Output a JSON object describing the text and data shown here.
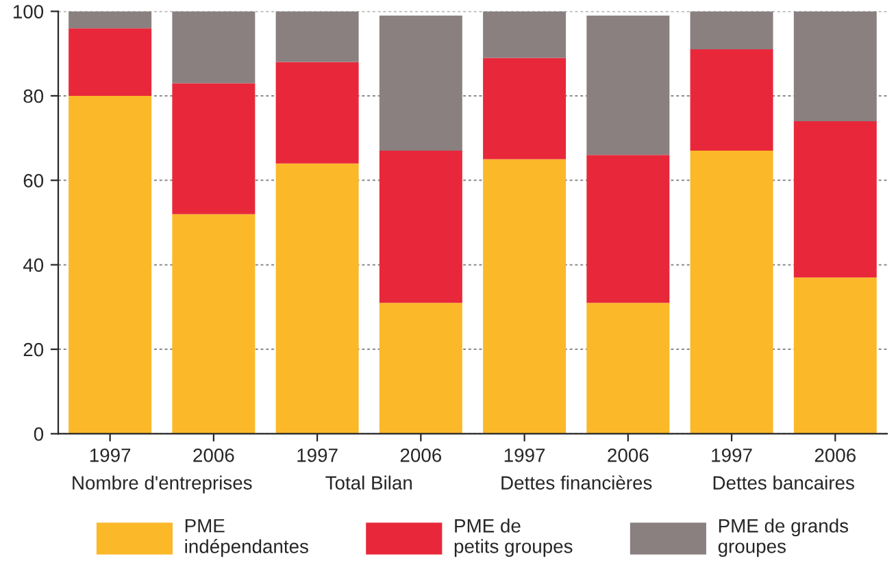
{
  "chart_data": {
    "type": "bar",
    "stacked": true,
    "categories": [
      "1997",
      "2006",
      "1997",
      "2006",
      "1997",
      "2006",
      "1997",
      "2006"
    ],
    "annotations": [
      "Nombre d'entreprises",
      "Total Bilan",
      "Dettes financières",
      "Dettes bancaires"
    ],
    "series": [
      {
        "name": "PME\nindépendantes",
        "color": "#fbb829",
        "values": [
          80,
          52,
          64,
          31,
          65,
          31,
          67,
          37
        ]
      },
      {
        "name": "PME de\npetits groupes",
        "color": "#e8283a",
        "values": [
          16,
          31,
          24,
          36,
          24,
          35,
          24,
          37
        ]
      },
      {
        "name": "PME de grands\ngroupes",
        "color": "#8a8080",
        "values": [
          4,
          17,
          12,
          32,
          11,
          33,
          9,
          26
        ]
      }
    ],
    "ylim": [
      0,
      100
    ],
    "yticks": [
      0,
      20,
      40,
      60,
      80,
      100
    ],
    "grid": "y",
    "legend": "bottom"
  }
}
